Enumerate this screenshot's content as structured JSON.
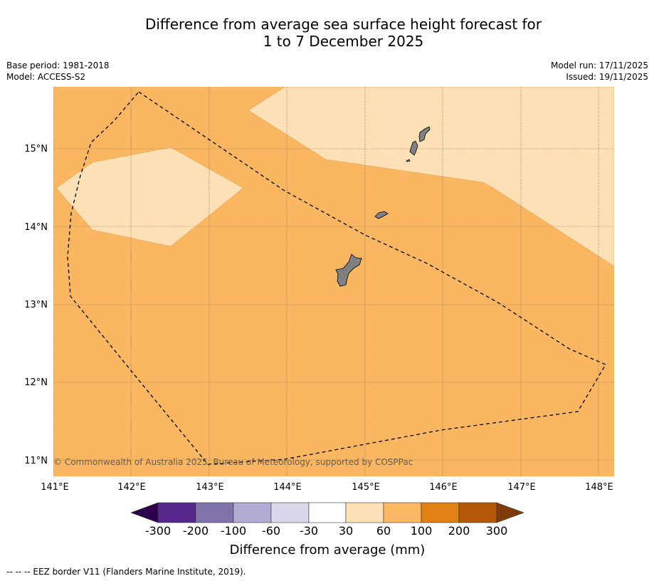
{
  "title_line1": "Difference from average sea surface height forecast for",
  "title_line2": "1 to 7 December 2025",
  "base_period": "Base period: 1981-2018",
  "model": "Model: ACCESS-S2",
  "model_run": "Model run: 17/11/2025",
  "issued": "Issued: 19/11/2025",
  "copyright": "© Commonwealth of Australia 2025, Bureau of Meteorology, supported by COSPPac",
  "lat_labels": [
    "15°N",
    "14°N",
    "13°N",
    "12°N",
    "11°N"
  ],
  "lon_labels": [
    "141°E",
    "142°E",
    "143°E",
    "144°E",
    "145°E",
    "146°E",
    "147°E",
    "148°E"
  ],
  "colorbar": {
    "label": "Difference from average (mm)",
    "tick_labels": [
      "-300",
      "-200",
      "-100",
      "-60",
      "-30",
      "30",
      "60",
      "100",
      "200",
      "300"
    ],
    "colors": [
      "#2d004b",
      "#542788",
      "#8073ac",
      "#b2abd2",
      "#d8daeb",
      "#ffffff",
      "#fee0b6",
      "#fdb863",
      "#e08214",
      "#b35806",
      "#7f3b08"
    ]
  },
  "footer": "--  --  -- EEZ border V11 (Flanders Marine Institute, 2019).",
  "colors": {
    "background_category": "#fbb661",
    "light_category": "#fde0b5",
    "land": "#808080",
    "grid": "#555555"
  }
}
